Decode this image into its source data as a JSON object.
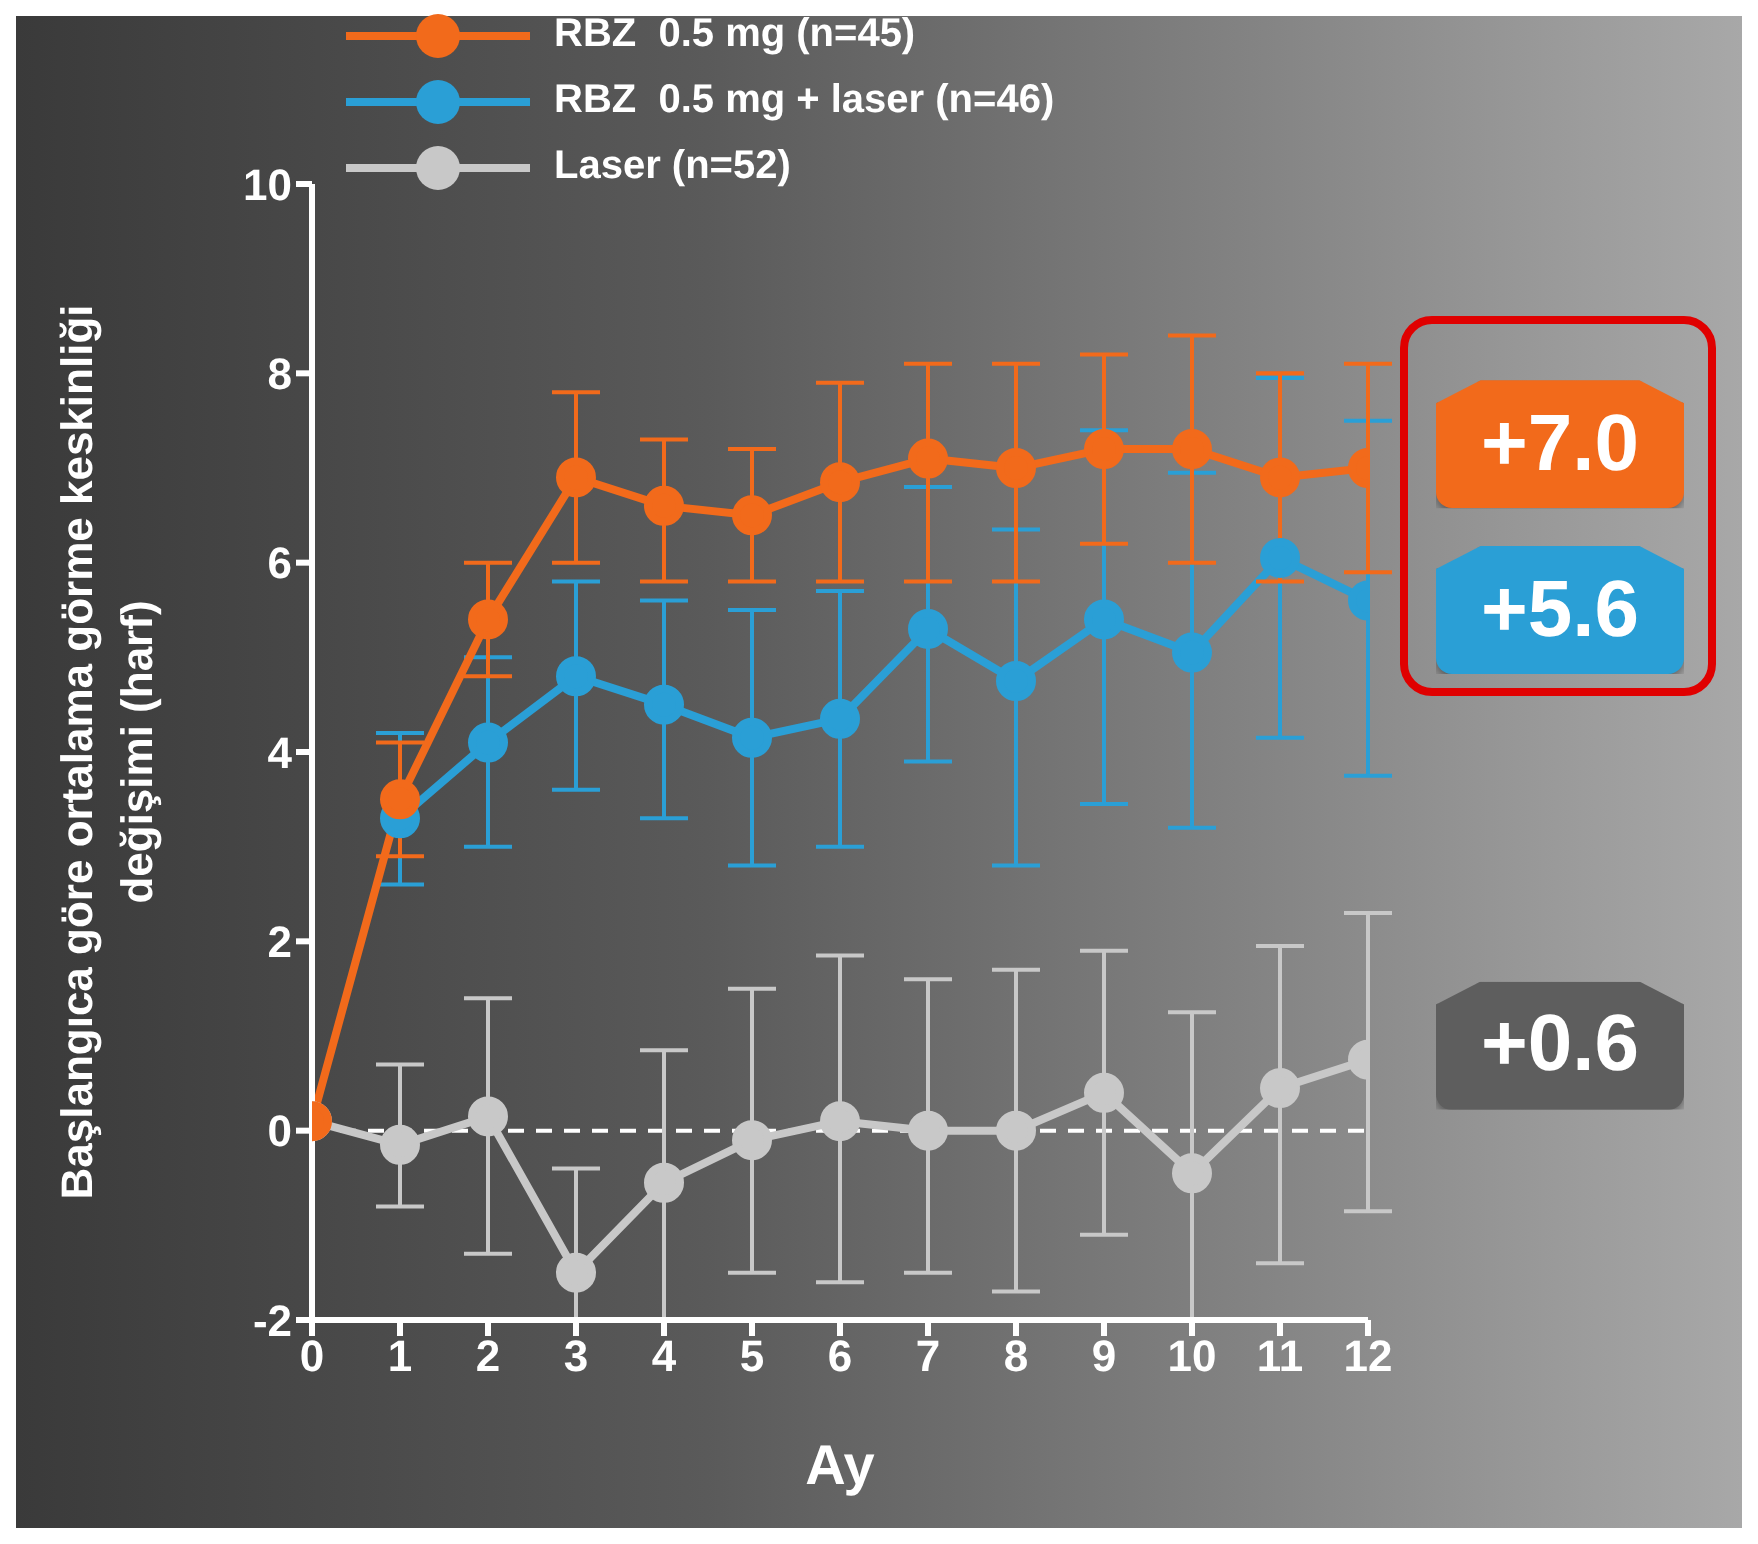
{
  "chart_data": {
    "type": "line",
    "xlabel": "Ay",
    "ylabel": "Başlangıca göre ortalama görme keskinliği değişimi (harf)",
    "x": [
      0,
      1,
      2,
      3,
      4,
      5,
      6,
      7,
      8,
      9,
      10,
      11,
      12
    ],
    "xlim": [
      0,
      12
    ],
    "xticks": [
      0,
      1,
      2,
      3,
      4,
      5,
      6,
      7,
      8,
      9,
      10,
      11,
      12
    ],
    "ylim": [
      -2,
      10
    ],
    "yticks": [
      -2,
      0,
      2,
      4,
      6,
      8,
      10
    ],
    "legend": "top",
    "marker": "circle",
    "grid": false,
    "series": [
      {
        "name": "RBZ  0.5 mg (n=45)",
        "color": "#f26a1b",
        "values": [
          0.1,
          3.5,
          5.4,
          6.9,
          6.6,
          6.5,
          6.85,
          7.1,
          7.0,
          7.2,
          7.2,
          6.9,
          7.0
        ],
        "errors": [
          null,
          [
            2.9,
            4.1
          ],
          [
            4.8,
            6.0
          ],
          [
            6.0,
            7.8
          ],
          [
            5.8,
            7.3
          ],
          [
            5.8,
            7.2
          ],
          [
            5.8,
            7.9
          ],
          [
            5.8,
            8.1
          ],
          [
            5.8,
            8.1
          ],
          [
            6.2,
            8.2
          ],
          [
            6.0,
            8.4
          ],
          [
            5.8,
            8.0
          ],
          [
            5.9,
            8.1
          ]
        ]
      },
      {
        "name": "RBZ  0.5 mg + laser (n=46)",
        "color": "#2a9fd6",
        "values": [
          null,
          3.3,
          4.1,
          4.8,
          4.5,
          4.15,
          4.35,
          5.3,
          4.75,
          5.4,
          5.05,
          6.05,
          5.6
        ],
        "errors": [
          null,
          [
            2.6,
            4.2
          ],
          [
            3.0,
            5.0
          ],
          [
            3.6,
            5.8
          ],
          [
            3.3,
            5.6
          ],
          [
            2.8,
            5.5
          ],
          [
            3.0,
            5.7
          ],
          [
            3.9,
            6.8
          ],
          [
            2.8,
            6.35
          ],
          [
            3.45,
            7.4
          ],
          [
            3.2,
            6.95
          ],
          [
            4.15,
            7.95
          ],
          [
            3.75,
            7.5
          ]
        ]
      },
      {
        "name": "Laser (n=52)",
        "color": "#c8c8c8",
        "values": [
          0.1,
          -0.15,
          0.15,
          -1.5,
          -0.55,
          -0.1,
          0.1,
          0.0,
          0.0,
          0.4,
          -0.45,
          0.45,
          0.75
        ],
        "errors": [
          null,
          [
            -0.8,
            0.7
          ],
          [
            -1.3,
            1.4
          ],
          [
            -2.0,
            -0.4
          ],
          [
            -2.0,
            0.85
          ],
          [
            -1.5,
            1.5
          ],
          [
            -1.6,
            1.85
          ],
          [
            -1.5,
            1.6
          ],
          [
            -1.7,
            1.7
          ],
          [
            -1.1,
            1.9
          ],
          [
            -2.0,
            1.25
          ],
          [
            -1.4,
            1.95
          ],
          [
            -0.85,
            2.3
          ]
        ]
      }
    ],
    "ref_lines": [
      {
        "axis": "y",
        "value": 0,
        "color": "#ffffff",
        "line_style": "dashed"
      }
    ],
    "annotations": [
      "+7.0",
      "+5.6",
      "+0.6"
    ]
  }
}
